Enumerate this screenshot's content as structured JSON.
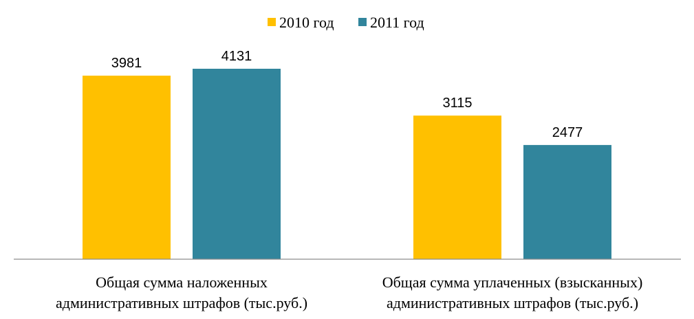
{
  "chart_data": {
    "type": "bar",
    "categories": [
      [
        "Общая сумма наложенных",
        "административных штрафов (тыс.руб.)"
      ],
      [
        "Общая сумма уплаченных (взысканных)",
        "административных штрафов (тыс.руб.)"
      ]
    ],
    "series": [
      {
        "name": "2010 год",
        "color": "#FFC000",
        "values": [
          3981,
          3115
        ]
      },
      {
        "name": "2011 год",
        "color": "#31859C",
        "values": [
          4131,
          2477
        ]
      }
    ],
    "ylim": [
      0,
      4131
    ],
    "legend": "top-center",
    "grid": false
  }
}
